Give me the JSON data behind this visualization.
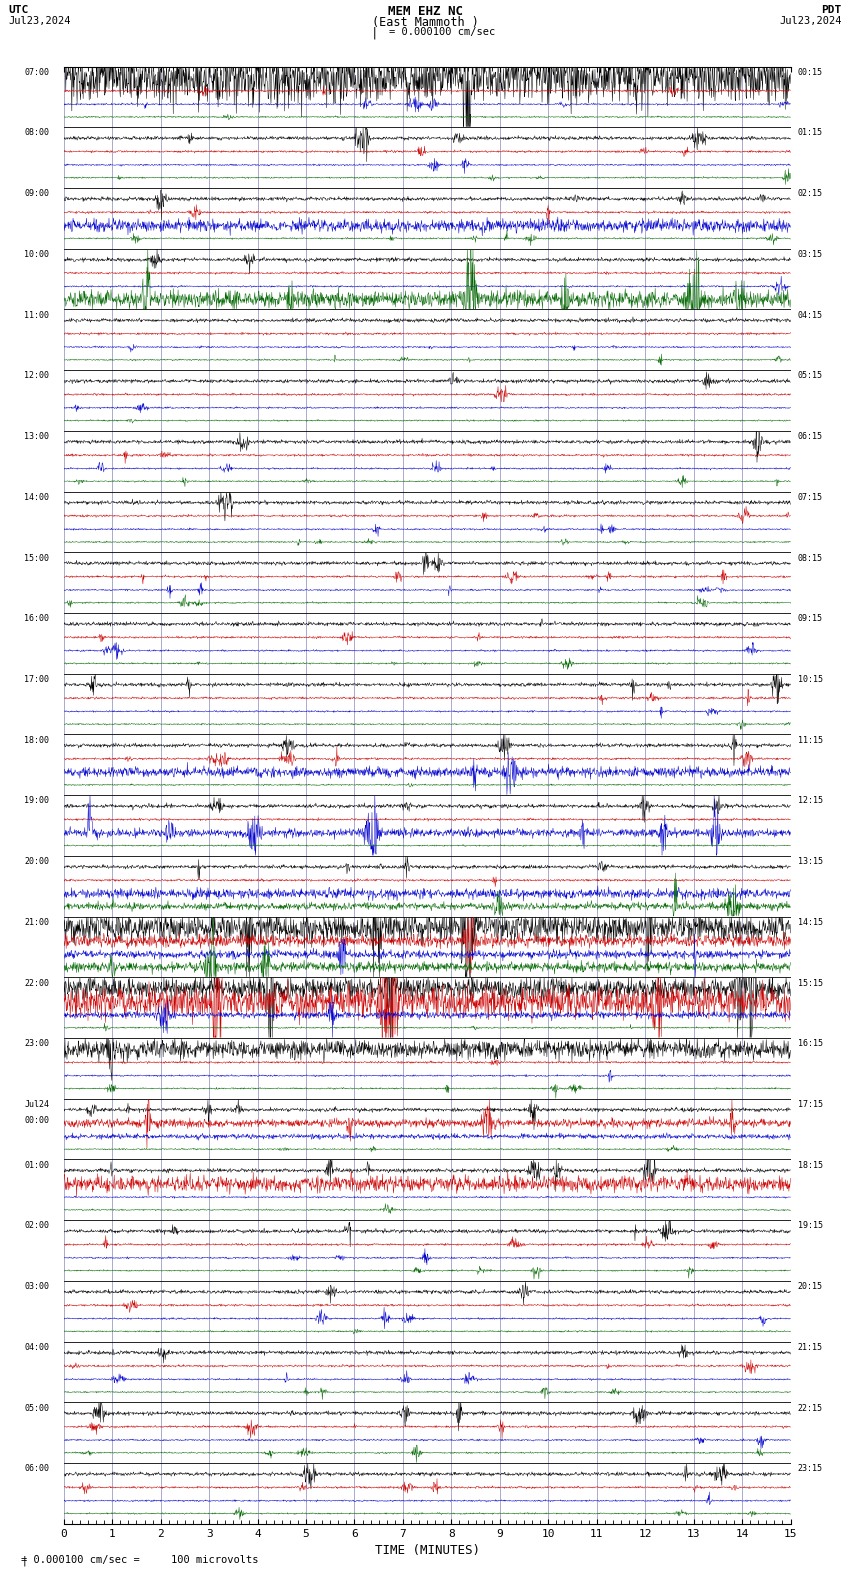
{
  "title_line1": "MEM EHZ NC",
  "title_line2": "(East Mammoth )",
  "scale_label": "= 0.000100 cm/sec",
  "utc_label": "UTC",
  "pdt_label": "PDT",
  "date_left": "Jul23,2024",
  "date_right": "Jul23,2024",
  "bottom_label": "TIME (MINUTES)",
  "footer_label": "= 0.000100 cm/sec =     100 microvolts",
  "bg_color": "#ffffff",
  "grid_color": "#8888bb",
  "trace_colors": [
    "#000000",
    "#cc0000",
    "#0000cc",
    "#006600"
  ],
  "x_min": 0,
  "x_max": 15,
  "x_ticks": [
    0,
    1,
    2,
    3,
    4,
    5,
    6,
    7,
    8,
    9,
    10,
    11,
    12,
    13,
    14,
    15
  ],
  "utc_times": [
    "07:00",
    "08:00",
    "09:00",
    "10:00",
    "11:00",
    "12:00",
    "13:00",
    "14:00",
    "15:00",
    "16:00",
    "17:00",
    "18:00",
    "19:00",
    "20:00",
    "21:00",
    "22:00",
    "23:00",
    "Jul24\n00:00",
    "01:00",
    "02:00",
    "03:00",
    "04:00",
    "05:00",
    "06:00"
  ],
  "pdt_times": [
    "00:15",
    "01:15",
    "02:15",
    "03:15",
    "04:15",
    "05:15",
    "06:15",
    "07:15",
    "08:15",
    "09:15",
    "10:15",
    "11:15",
    "12:15",
    "13:15",
    "14:15",
    "15:15",
    "16:15",
    "17:15",
    "18:15",
    "19:15",
    "20:15",
    "21:15",
    "22:15",
    "23:15"
  ],
  "n_rows": 24,
  "traces_per_row": 4,
  "seed": 42
}
